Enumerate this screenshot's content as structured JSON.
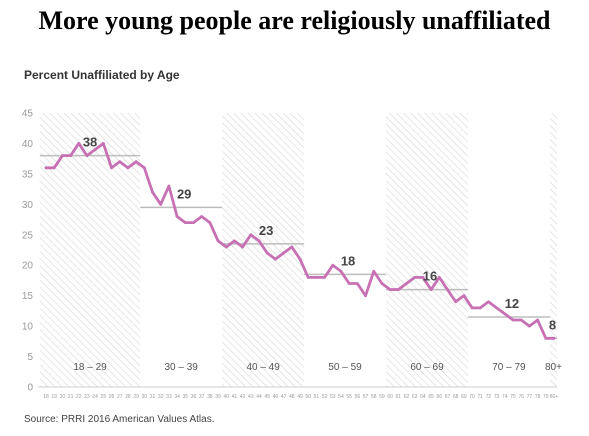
{
  "headline": "More young people are religiously unaffiliated",
  "colors": {
    "line": "#c771b4",
    "band_line": "#bdbdbd",
    "hatch": "#d9d9d9",
    "axis_text": "#9a9a9a",
    "label_text": "#444444"
  },
  "chart_data": {
    "type": "line",
    "title": "Percent Unaffiliated by Age",
    "source": "Source: PRRI 2016 American Values Atlas.",
    "xlabel": "",
    "ylabel": "",
    "ylim": [
      0,
      45
    ],
    "yticks": [
      0,
      5,
      10,
      15,
      20,
      25,
      30,
      35,
      40,
      45
    ],
    "grid": false,
    "x_tick_labels": [
      "18",
      "19",
      "20",
      "21",
      "22",
      "23",
      "24",
      "25",
      "26",
      "27",
      "28",
      "29",
      "30",
      "31",
      "32",
      "33",
      "34",
      "35",
      "36",
      "37",
      "38",
      "39",
      "40",
      "41",
      "42",
      "43",
      "44",
      "45",
      "46",
      "47",
      "48",
      "49",
      "50",
      "51",
      "52",
      "53",
      "54",
      "55",
      "56",
      "57",
      "58",
      "59",
      "60",
      "61",
      "62",
      "63",
      "64",
      "65",
      "66",
      "67",
      "68",
      "69",
      "70",
      "71",
      "72",
      "73",
      "74",
      "75",
      "76",
      "77",
      "78",
      "79",
      "80+"
    ],
    "series": [
      {
        "values": [
          36,
          36,
          38,
          38,
          40,
          38,
          39,
          40,
          36,
          37,
          36,
          37,
          36,
          32,
          30,
          33,
          28,
          27,
          27,
          28,
          27,
          24,
          23,
          24,
          23,
          25,
          24,
          22,
          21,
          22,
          23,
          21,
          18,
          18,
          18,
          20,
          19,
          17,
          17,
          15,
          19,
          17,
          16,
          16,
          17,
          18,
          18,
          16,
          18,
          16,
          14,
          15,
          13,
          13,
          14,
          13,
          12,
          11,
          11,
          10,
          11,
          8,
          8
        ]
      }
    ],
    "age_groups": [
      {
        "label": "18 – 29",
        "from": "18",
        "to": "29",
        "average": 38,
        "avg_label": "38",
        "hatched": true
      },
      {
        "label": "30 – 39",
        "from": "30",
        "to": "39",
        "average": 29.5,
        "avg_label": "29",
        "hatched": false
      },
      {
        "label": "40 – 49",
        "from": "40",
        "to": "49",
        "average": 23.5,
        "avg_label": "23",
        "hatched": true
      },
      {
        "label": "50 – 59",
        "from": "50",
        "to": "59",
        "average": 18.5,
        "avg_label": "18",
        "hatched": false
      },
      {
        "label": "60 – 69",
        "from": "60",
        "to": "69",
        "average": 16,
        "avg_label": "16",
        "hatched": true
      },
      {
        "label": "70 – 79",
        "from": "70",
        "to": "79",
        "average": 11.5,
        "avg_label": "12",
        "hatched": false
      },
      {
        "label": "80+",
        "from": "80+",
        "to": "80+",
        "average": 8,
        "avg_label": "8",
        "hatched": true
      }
    ]
  }
}
